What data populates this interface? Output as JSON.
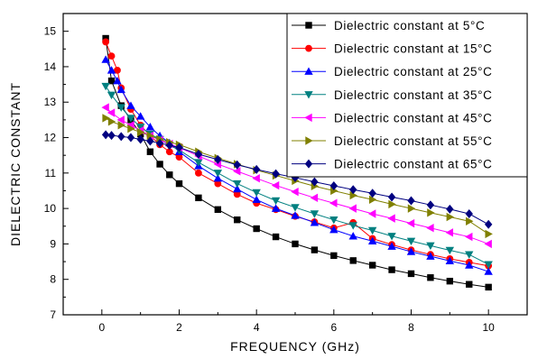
{
  "chart_data": {
    "type": "line",
    "title": "",
    "xlabel": "FREQUENCY (GHz)",
    "ylabel": "DIELECTRIC CONSTANT",
    "xlim": [
      -1,
      11
    ],
    "ylim": [
      7,
      15.5
    ],
    "xticks": [
      0,
      2,
      4,
      6,
      8,
      10
    ],
    "yticks": [
      7,
      8,
      9,
      10,
      11,
      12,
      13,
      14,
      15
    ],
    "grid": false,
    "legend_position": "top-right",
    "series": [
      {
        "name": "Dielectric constant at 5°C",
        "marker": "square",
        "color": "#000000",
        "x": [
          0.1,
          0.25,
          0.5,
          0.75,
          1,
          1.25,
          1.5,
          1.75,
          2,
          2.5,
          3,
          3.5,
          4,
          4.5,
          5,
          5.5,
          6,
          6.5,
          7,
          7.5,
          8,
          8.5,
          9,
          9.5,
          10
        ],
        "y": [
          14.8,
          13.6,
          12.9,
          12.5,
          12.1,
          11.6,
          11.25,
          10.95,
          10.7,
          10.3,
          9.97,
          9.68,
          9.43,
          9.2,
          9.0,
          8.83,
          8.67,
          8.53,
          8.4,
          8.27,
          8.16,
          8.05,
          7.95,
          7.86,
          7.78
        ]
      },
      {
        "name": "Dielectric constant at 15°C",
        "marker": "circle",
        "color": "#ff0000",
        "x": [
          0.1,
          0.25,
          0.4,
          0.5,
          0.75,
          1,
          1.25,
          1.5,
          1.75,
          2,
          2.5,
          3,
          3.5,
          4,
          4.5,
          5,
          5.5,
          6,
          6.5,
          7,
          7.5,
          8,
          8.5,
          9,
          9.5,
          10
        ],
        "y": [
          14.7,
          14.3,
          13.9,
          13.4,
          12.8,
          12.35,
          12.05,
          11.8,
          11.6,
          11.45,
          11.0,
          10.7,
          10.4,
          10.15,
          9.97,
          9.78,
          9.62,
          9.45,
          9.6,
          9.15,
          8.98,
          8.83,
          8.7,
          8.58,
          8.48,
          8.38
        ]
      },
      {
        "name": "Dielectric constant at 25°C",
        "marker": "triangle-up",
        "color": "#0000ff",
        "x": [
          0.1,
          0.25,
          0.4,
          0.5,
          0.75,
          1,
          1.25,
          1.5,
          1.75,
          2,
          2.5,
          3,
          3.5,
          4,
          4.5,
          5,
          5.5,
          6,
          6.5,
          7,
          7.5,
          8,
          8.5,
          9,
          9.5,
          10
        ],
        "y": [
          14.2,
          13.9,
          13.6,
          13.35,
          12.9,
          12.6,
          12.3,
          12.05,
          11.85,
          11.6,
          11.2,
          10.85,
          10.55,
          10.25,
          10.0,
          9.8,
          9.6,
          9.4,
          9.22,
          9.08,
          8.93,
          8.78,
          8.65,
          8.52,
          8.4,
          8.22
        ]
      },
      {
        "name": "Dielectric constant at 35°C",
        "marker": "triangle-down",
        "color": "#008080",
        "x": [
          0.1,
          0.25,
          0.5,
          0.75,
          1,
          1.25,
          1.5,
          1.75,
          2,
          2.5,
          3,
          3.5,
          4,
          4.5,
          5,
          5.5,
          6,
          6.5,
          7,
          7.5,
          8,
          8.5,
          9,
          9.5,
          10
        ],
        "y": [
          13.45,
          13.2,
          12.85,
          12.55,
          12.3,
          12.1,
          11.95,
          11.78,
          11.65,
          11.3,
          11.0,
          10.7,
          10.45,
          10.22,
          10.03,
          9.85,
          9.68,
          9.52,
          9.38,
          9.22,
          9.08,
          8.95,
          8.82,
          8.7,
          8.42
        ]
      },
      {
        "name": "Dielectric constant at 45°C",
        "marker": "triangle-left",
        "color": "#ff00ff",
        "x": [
          0.1,
          0.25,
          0.5,
          0.75,
          1,
          1.25,
          1.5,
          1.75,
          2,
          2.5,
          3,
          3.5,
          4,
          4.5,
          5,
          5.5,
          6,
          6.5,
          7,
          7.5,
          8,
          8.5,
          9,
          9.5,
          10
        ],
        "y": [
          12.85,
          12.7,
          12.5,
          12.35,
          12.2,
          12.05,
          11.93,
          11.82,
          11.72,
          11.48,
          11.25,
          11.05,
          10.85,
          10.65,
          10.47,
          10.3,
          10.15,
          10.0,
          9.85,
          9.72,
          9.58,
          9.45,
          9.32,
          9.2,
          9.0
        ]
      },
      {
        "name": "Dielectric constant at 55°C",
        "marker": "triangle-right",
        "color": "#808000",
        "x": [
          0.1,
          0.25,
          0.5,
          0.75,
          1,
          1.25,
          1.5,
          1.75,
          2,
          2.5,
          3,
          3.5,
          4,
          4.5,
          5,
          5.5,
          6,
          6.5,
          7,
          7.5,
          8,
          8.5,
          9,
          9.5,
          10
        ],
        "y": [
          12.55,
          12.45,
          12.35,
          12.25,
          12.15,
          12.05,
          11.95,
          11.87,
          11.8,
          11.6,
          11.42,
          11.25,
          11.08,
          10.93,
          10.78,
          10.63,
          10.5,
          10.37,
          10.25,
          10.12,
          10.0,
          9.88,
          9.76,
          9.64,
          9.28
        ]
      },
      {
        "name": "Dielectric constant at 65°C",
        "marker": "diamond",
        "color": "#000080",
        "x": [
          0.1,
          0.25,
          0.5,
          0.75,
          1,
          1.25,
          1.5,
          1.75,
          2,
          2.5,
          3,
          3.5,
          4,
          4.5,
          5,
          5.5,
          6,
          6.5,
          7,
          7.5,
          8,
          8.5,
          9,
          9.5,
          10
        ],
        "y": [
          12.08,
          12.06,
          12.03,
          12.0,
          11.95,
          11.9,
          11.84,
          11.78,
          11.72,
          11.53,
          11.38,
          11.23,
          11.1,
          10.98,
          10.87,
          10.75,
          10.64,
          10.53,
          10.43,
          10.32,
          10.22,
          10.1,
          9.98,
          9.85,
          9.55
        ]
      }
    ]
  }
}
